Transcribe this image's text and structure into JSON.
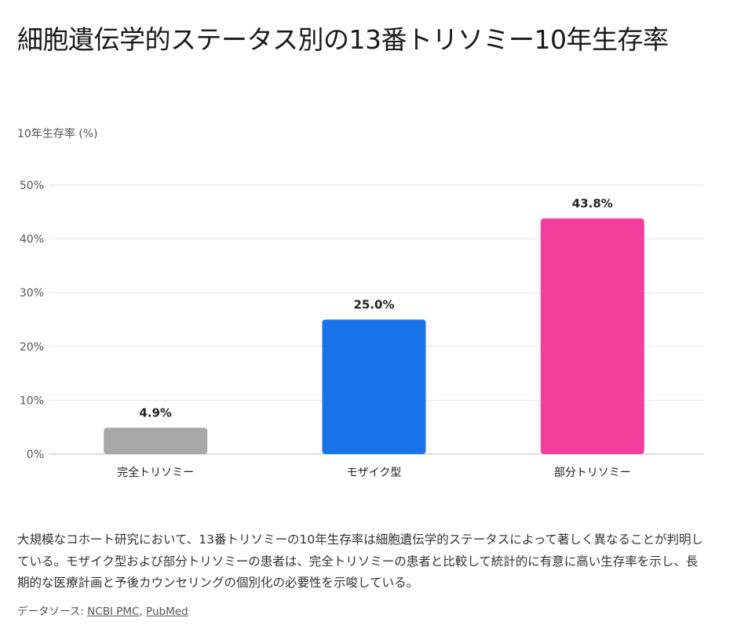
{
  "chart_data": {
    "type": "bar",
    "title": "細胞遺伝学的ステータス別の13番トリソミー10年生存率",
    "ylabel": "10年生存率 (%)",
    "xlabel": "",
    "categories": [
      "完全トリソミー",
      "モザイク型",
      "部分トリソミー"
    ],
    "values": [
      4.9,
      25.0,
      43.8
    ],
    "data_labels": [
      "4.9%",
      "25.0%",
      "43.8%"
    ],
    "colors": [
      "#a8a8a8",
      "#1a73e8",
      "#f43f9e"
    ],
    "ylim": [
      0,
      50
    ],
    "yticks": [
      0,
      10,
      20,
      30,
      40,
      50
    ],
    "ytick_labels": [
      "0%",
      "10%",
      "20%",
      "30%",
      "40%",
      "50%"
    ],
    "grid": true
  },
  "description": "大規模なコホート研究において、13番トリソミーの10年生存率は細胞遺伝学的ステータスによって著しく異なることが判明している。モザイク型および部分トリソミーの患者は、完全トリソミーの患者と比較して統計的に有意に高い生存率を示し、長期的な医療計画と予後カウンセリングの個別化の必要性を示唆している。",
  "source": {
    "prefix": "データソース: ",
    "links": [
      "NCBI PMC",
      "PubMed"
    ],
    "separator": ", "
  }
}
